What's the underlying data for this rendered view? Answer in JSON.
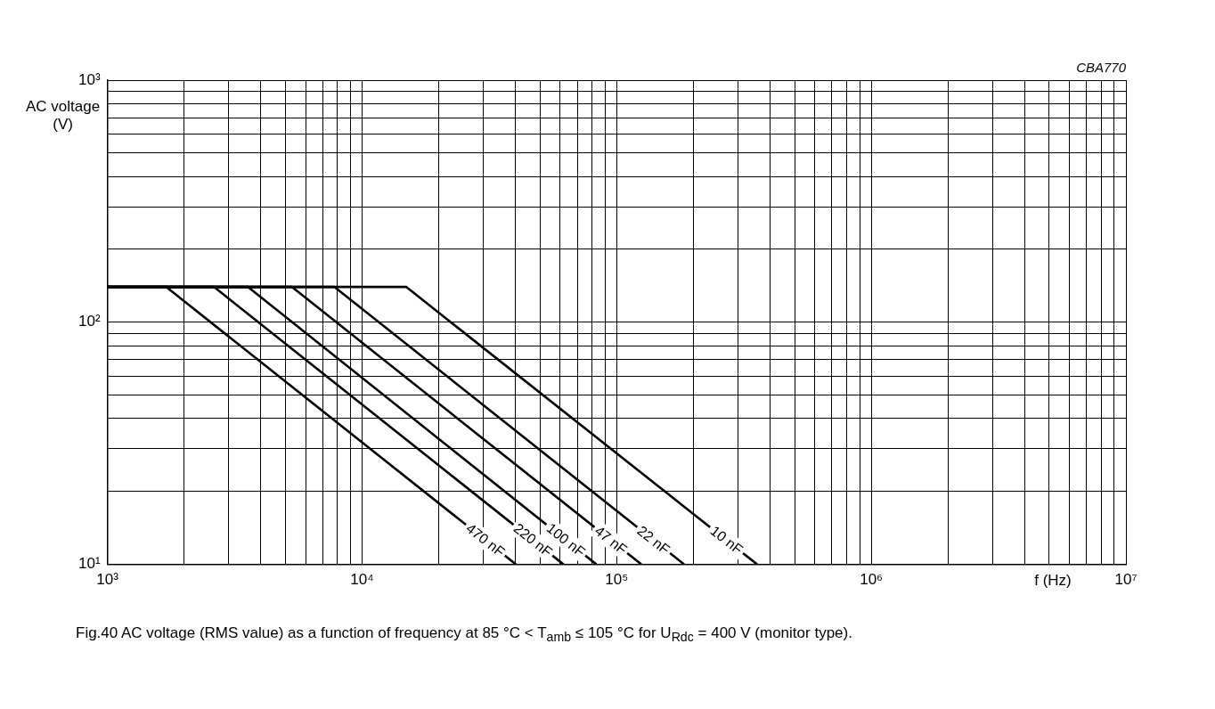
{
  "chart_data": {
    "type": "line",
    "title": "Fig.40   AC voltage (RMS value) as a function of frequency at 85 °C < T$_{amb}$ ≤ 105 °C for U$_{Rdc}$ = 400 V (monitor type).",
    "xlabel": "f (Hz)",
    "ylabel": "AC voltage (V)",
    "annotations": [
      "CBA770"
    ],
    "log": "xy",
    "grid": true,
    "legend": false,
    "marker": "none",
    "line_style": "solid",
    "xlim": [
      1000,
      10000000
    ],
    "ylim": [
      10,
      1000
    ],
    "xticks": [
      {
        "value": 1000,
        "label": "10³"
      },
      {
        "value": 2000,
        "label": null
      },
      {
        "value": 3000,
        "label": null
      },
      {
        "value": 4000,
        "label": null
      },
      {
        "value": 5000,
        "label": null
      },
      {
        "value": 6000,
        "label": null
      },
      {
        "value": 7000,
        "label": null
      },
      {
        "value": 8000,
        "label": null
      },
      {
        "value": 9000,
        "label": null
      },
      {
        "value": 10000,
        "label": "10⁴"
      },
      {
        "value": 20000,
        "label": null
      },
      {
        "value": 30000,
        "label": null
      },
      {
        "value": 40000,
        "label": null
      },
      {
        "value": 50000,
        "label": null
      },
      {
        "value": 60000,
        "label": null
      },
      {
        "value": 70000,
        "label": null
      },
      {
        "value": 80000,
        "label": null
      },
      {
        "value": 90000,
        "label": null
      },
      {
        "value": 100000,
        "label": "10⁵"
      },
      {
        "value": 200000,
        "label": null
      },
      {
        "value": 300000,
        "label": null
      },
      {
        "value": 400000,
        "label": null
      },
      {
        "value": 500000,
        "label": null
      },
      {
        "value": 600000,
        "label": null
      },
      {
        "value": 700000,
        "label": null
      },
      {
        "value": 800000,
        "label": null
      },
      {
        "value": 900000,
        "label": null
      },
      {
        "value": 1000000,
        "label": "10⁶"
      },
      {
        "value": 2000000,
        "label": null
      },
      {
        "value": 3000000,
        "label": null
      },
      {
        "value": 4000000,
        "label": null
      },
      {
        "value": 5000000,
        "label": null
      },
      {
        "value": 6000000,
        "label": null
      },
      {
        "value": 7000000,
        "label": null
      },
      {
        "value": 8000000,
        "label": null
      },
      {
        "value": 9000000,
        "label": null
      },
      {
        "value": 10000000,
        "label": "10⁷"
      }
    ],
    "yticks": [
      {
        "value": 10,
        "label": "10¹"
      },
      {
        "value": 20,
        "label": null
      },
      {
        "value": 30,
        "label": null
      },
      {
        "value": 40,
        "label": null
      },
      {
        "value": 50,
        "label": null
      },
      {
        "value": 60,
        "label": null
      },
      {
        "value": 70,
        "label": null
      },
      {
        "value": 80,
        "label": null
      },
      {
        "value": 90,
        "label": null
      },
      {
        "value": 100,
        "label": "10²"
      },
      {
        "value": 200,
        "label": null
      },
      {
        "value": 300,
        "label": null
      },
      {
        "value": 400,
        "label": null
      },
      {
        "value": 500,
        "label": null
      },
      {
        "value": 600,
        "label": null
      },
      {
        "value": 700,
        "label": null
      },
      {
        "value": 800,
        "label": null
      },
      {
        "value": 900,
        "label": null
      },
      {
        "value": 1000,
        "label": "10³"
      }
    ],
    "series": [
      {
        "name": "470 nF",
        "color": "#000000",
        "x": [
          1000,
          1700,
          40200
        ],
        "values": [
          140,
          140,
          10
        ]
      },
      {
        "name": "220 nF",
        "color": "#000000",
        "x": [
          1000,
          2620,
          61800
        ],
        "values": [
          140,
          140,
          10
        ]
      },
      {
        "name": "100 nF",
        "color": "#000000",
        "x": [
          1000,
          3560,
          83200
        ],
        "values": [
          140,
          140,
          10
        ]
      },
      {
        "name": "47 nF",
        "color": "#000000",
        "x": [
          1000,
          5300,
          125000
        ],
        "values": [
          140,
          140,
          10
        ]
      },
      {
        "name": "22 nF",
        "color": "#000000",
        "x": [
          1000,
          7780,
          184000
        ],
        "values": [
          140,
          140,
          10
        ]
      },
      {
        "name": "10 nF",
        "color": "#000000",
        "x": [
          1000,
          14900,
          356000
        ],
        "values": [
          140,
          140,
          10
        ]
      }
    ]
  }
}
